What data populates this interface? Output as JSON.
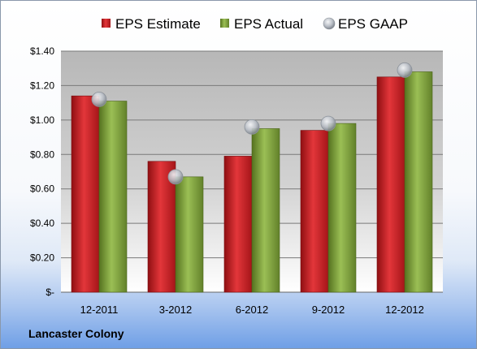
{
  "company": "Lancaster Colony",
  "colors": {
    "estimate": "#d7262b",
    "actual": "#7ea23a",
    "gaap": "#b9bec6"
  },
  "chart_data": {
    "type": "bar",
    "categories": [
      "12-2011",
      "3-2012",
      "6-2012",
      "9-2012",
      "12-2012"
    ],
    "series": [
      {
        "name": "EPS Estimate",
        "type": "bar",
        "values": [
          1.14,
          0.76,
          0.79,
          0.94,
          1.25
        ]
      },
      {
        "name": "EPS Actual",
        "type": "bar",
        "values": [
          1.11,
          0.67,
          0.95,
          0.98,
          1.28
        ]
      },
      {
        "name": "EPS GAAP",
        "type": "scatter",
        "values": [
          1.12,
          0.67,
          0.96,
          0.98,
          1.29
        ]
      }
    ],
    "yticks": [
      "$-",
      "$0.20",
      "$0.40",
      "$0.60",
      "$0.80",
      "$1.00",
      "$1.20",
      "$1.40"
    ],
    "ylim": [
      0,
      1.4
    ],
    "grid": true,
    "legend_position": "top"
  }
}
